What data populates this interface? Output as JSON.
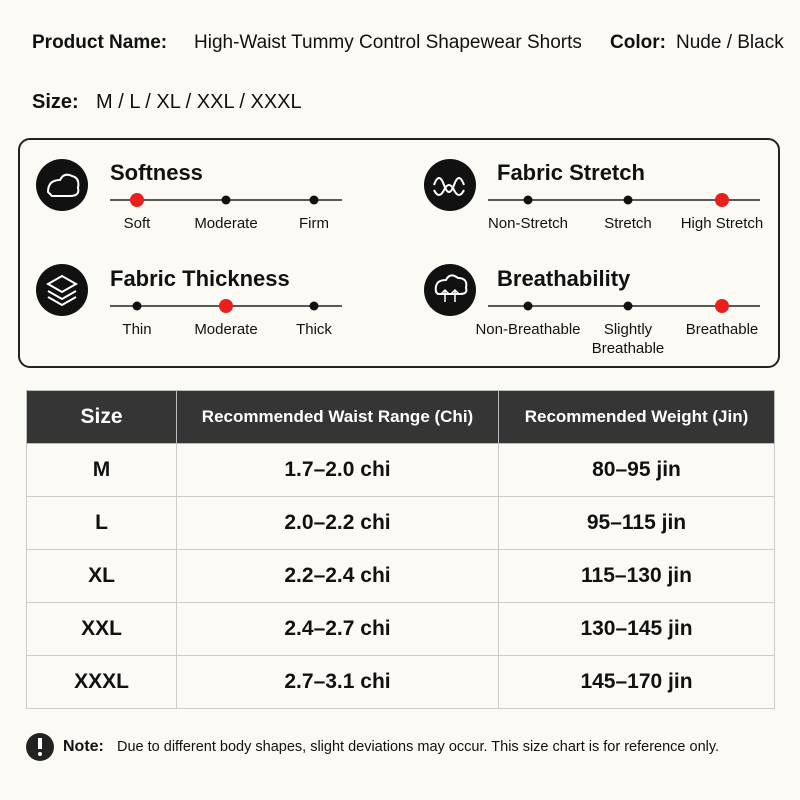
{
  "header": {
    "product_name_label": "Product Name:",
    "product_name": "High-Waist Tummy Control Shapewear Shorts",
    "color_label": "Color:",
    "color": "Nude / Black",
    "size_label": "Size:",
    "sizes": "M / L / XL / XXL / XXXL"
  },
  "features": [
    {
      "title": "Softness",
      "options": [
        "Soft",
        "Moderate",
        "Firm"
      ],
      "selected": 0
    },
    {
      "title": "Fabric Stretch",
      "options": [
        "Non-Stretch",
        "Stretch",
        "High Stretch"
      ],
      "selected": 2
    },
    {
      "title": "Fabric Thickness",
      "options": [
        "Thin",
        "Moderate",
        "Thick"
      ],
      "selected": 1
    },
    {
      "title": "Breathability",
      "options": [
        "Non-Breathable",
        "Slightly Breathable",
        "Breathable"
      ],
      "selected": 2
    }
  ],
  "table": {
    "header": [
      "Size",
      "Recommended Waist Range (Chi)",
      "Recommended Weight (Jin)"
    ],
    "rows": [
      [
        "M",
        "1.7–2.0 chi",
        "80–95 jin"
      ],
      [
        "L",
        "2.0–2.2 chi",
        "95–115 jin"
      ],
      [
        "XL",
        "2.2–2.4 chi",
        "115–130 jin"
      ],
      [
        "XXL",
        "2.4–2.7 chi",
        "130–145 jin"
      ],
      [
        "XXXL",
        "2.7–3.1 chi",
        "145–170 jin"
      ]
    ]
  },
  "note": {
    "label": "Note:",
    "text": "Due to different body shapes, slight deviations may occur. This size chart is for reference only."
  }
}
